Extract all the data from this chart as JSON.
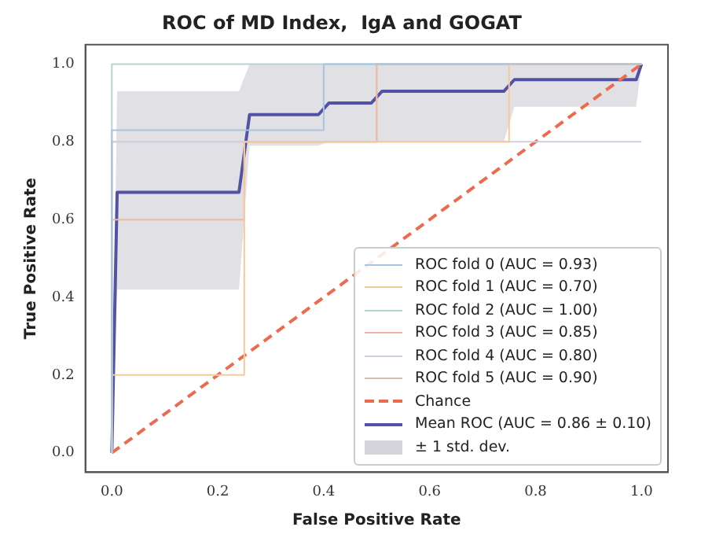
{
  "chart_data": {
    "type": "line",
    "title": "ROC of MD Index,  IgA and GOGAT",
    "xlabel": "False Positive Rate",
    "ylabel": "True Positive Rate",
    "xlim": [
      -0.05,
      1.05
    ],
    "ylim": [
      -0.05,
      1.05
    ],
    "xticks": [
      {
        "value": 0,
        "label": "0.0"
      },
      0.2,
      0.4,
      0.6,
      0.8,
      {
        "value": 1,
        "label": "1.0"
      }
    ],
    "yticks": [
      {
        "value": 0,
        "label": "0.0"
      },
      0.2,
      0.4,
      0.6,
      0.8,
      {
        "value": 1,
        "label": "1.0"
      }
    ],
    "grid": false,
    "legend": "bottom right",
    "marker": "none",
    "series": [
      {
        "name": "ROC fold 0 (AUC = 0.93)",
        "color": "#a9c4e0",
        "x": [
          0,
          0,
          0.4,
          0.4,
          1
        ],
        "values": [
          0,
          0.83,
          0.83,
          1,
          1
        ]
      },
      {
        "name": "ROC fold 1 (AUC = 0.70)",
        "color": "#f7c99a",
        "x": [
          0,
          0,
          0.25,
          0.25,
          0.75,
          0.75,
          1
        ],
        "values": [
          0,
          0.2,
          0.2,
          0.8,
          0.8,
          1,
          1
        ]
      },
      {
        "name": "ROC fold 2 (AUC = 1.00)",
        "color": "#b5d3cf",
        "x": [
          0,
          0,
          1
        ],
        "values": [
          0,
          1,
          1
        ]
      },
      {
        "name": "ROC fold 3 (AUC = 0.85)",
        "color": "#f0b8a0",
        "x": [
          0,
          0,
          0.25,
          0.25,
          0.5,
          0.5,
          1
        ],
        "values": [
          0,
          0.6,
          0.6,
          0.8,
          0.8,
          1,
          1
        ]
      },
      {
        "name": "ROC fold 4 (AUC = 0.80)",
        "color": "#d0d0e0",
        "x": [
          0,
          0,
          1
        ],
        "values": [
          0,
          0.8,
          0.8
        ]
      },
      {
        "name": "ROC fold 5 (AUC = 0.90)",
        "color": "#d8c0b8",
        "x": [
          0,
          0,
          0.5,
          0.5,
          1
        ],
        "values": [
          0,
          0.8,
          0.8,
          1,
          1
        ]
      },
      {
        "name": "Chance",
        "color": "#ee6a4f",
        "line_style": "dashed",
        "x": [
          0,
          1
        ],
        "values": [
          0,
          1
        ]
      },
      {
        "name": "Mean ROC (AUC = 0.86 ± 0.10)",
        "color": "#5252a4",
        "x": [
          0,
          0.01,
          0.24,
          0.26,
          0.39,
          0.41,
          0.49,
          0.51,
          0.74,
          0.76,
          0.99,
          1
        ],
        "values": [
          0,
          0.67,
          0.67,
          0.87,
          0.87,
          0.9,
          0.9,
          0.93,
          0.93,
          0.96,
          0.96,
          1
        ],
        "lower": [
          0,
          0.42,
          0.42,
          0.79,
          0.79,
          0.8,
          0.8,
          0.8,
          0.8,
          0.89,
          0.89,
          1
        ],
        "upper": [
          0,
          0.93,
          0.93,
          1,
          1,
          1,
          1,
          1,
          1,
          1,
          1,
          1
        ]
      }
    ],
    "annotations": [
      "± 1 std. dev."
    ]
  }
}
